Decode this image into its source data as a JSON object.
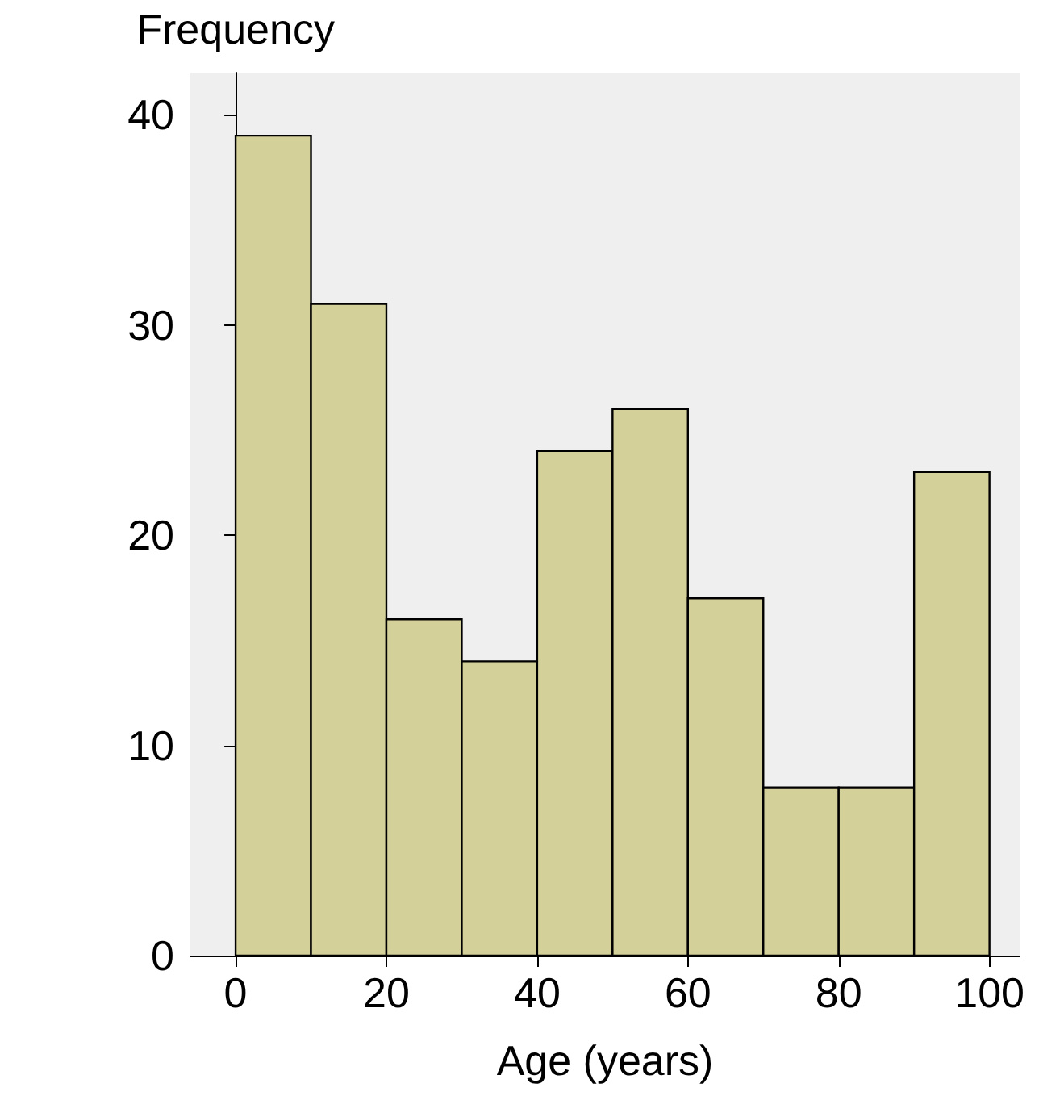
{
  "chart_data": {
    "type": "histogram",
    "xlabel": "Age (years)",
    "ylabel": "Frequency",
    "bins": [
      0,
      10,
      20,
      30,
      40,
      50,
      60,
      70,
      80,
      90,
      100
    ],
    "values": [
      39,
      31,
      16,
      14,
      24,
      26,
      17,
      8,
      8,
      23
    ],
    "color": "#d4d09a",
    "xlim": [
      -6,
      104
    ],
    "ylim": [
      0,
      42
    ],
    "xticks": [
      0,
      20,
      40,
      60,
      80,
      100
    ],
    "yticks": [
      0,
      10,
      20,
      30,
      40
    ]
  }
}
